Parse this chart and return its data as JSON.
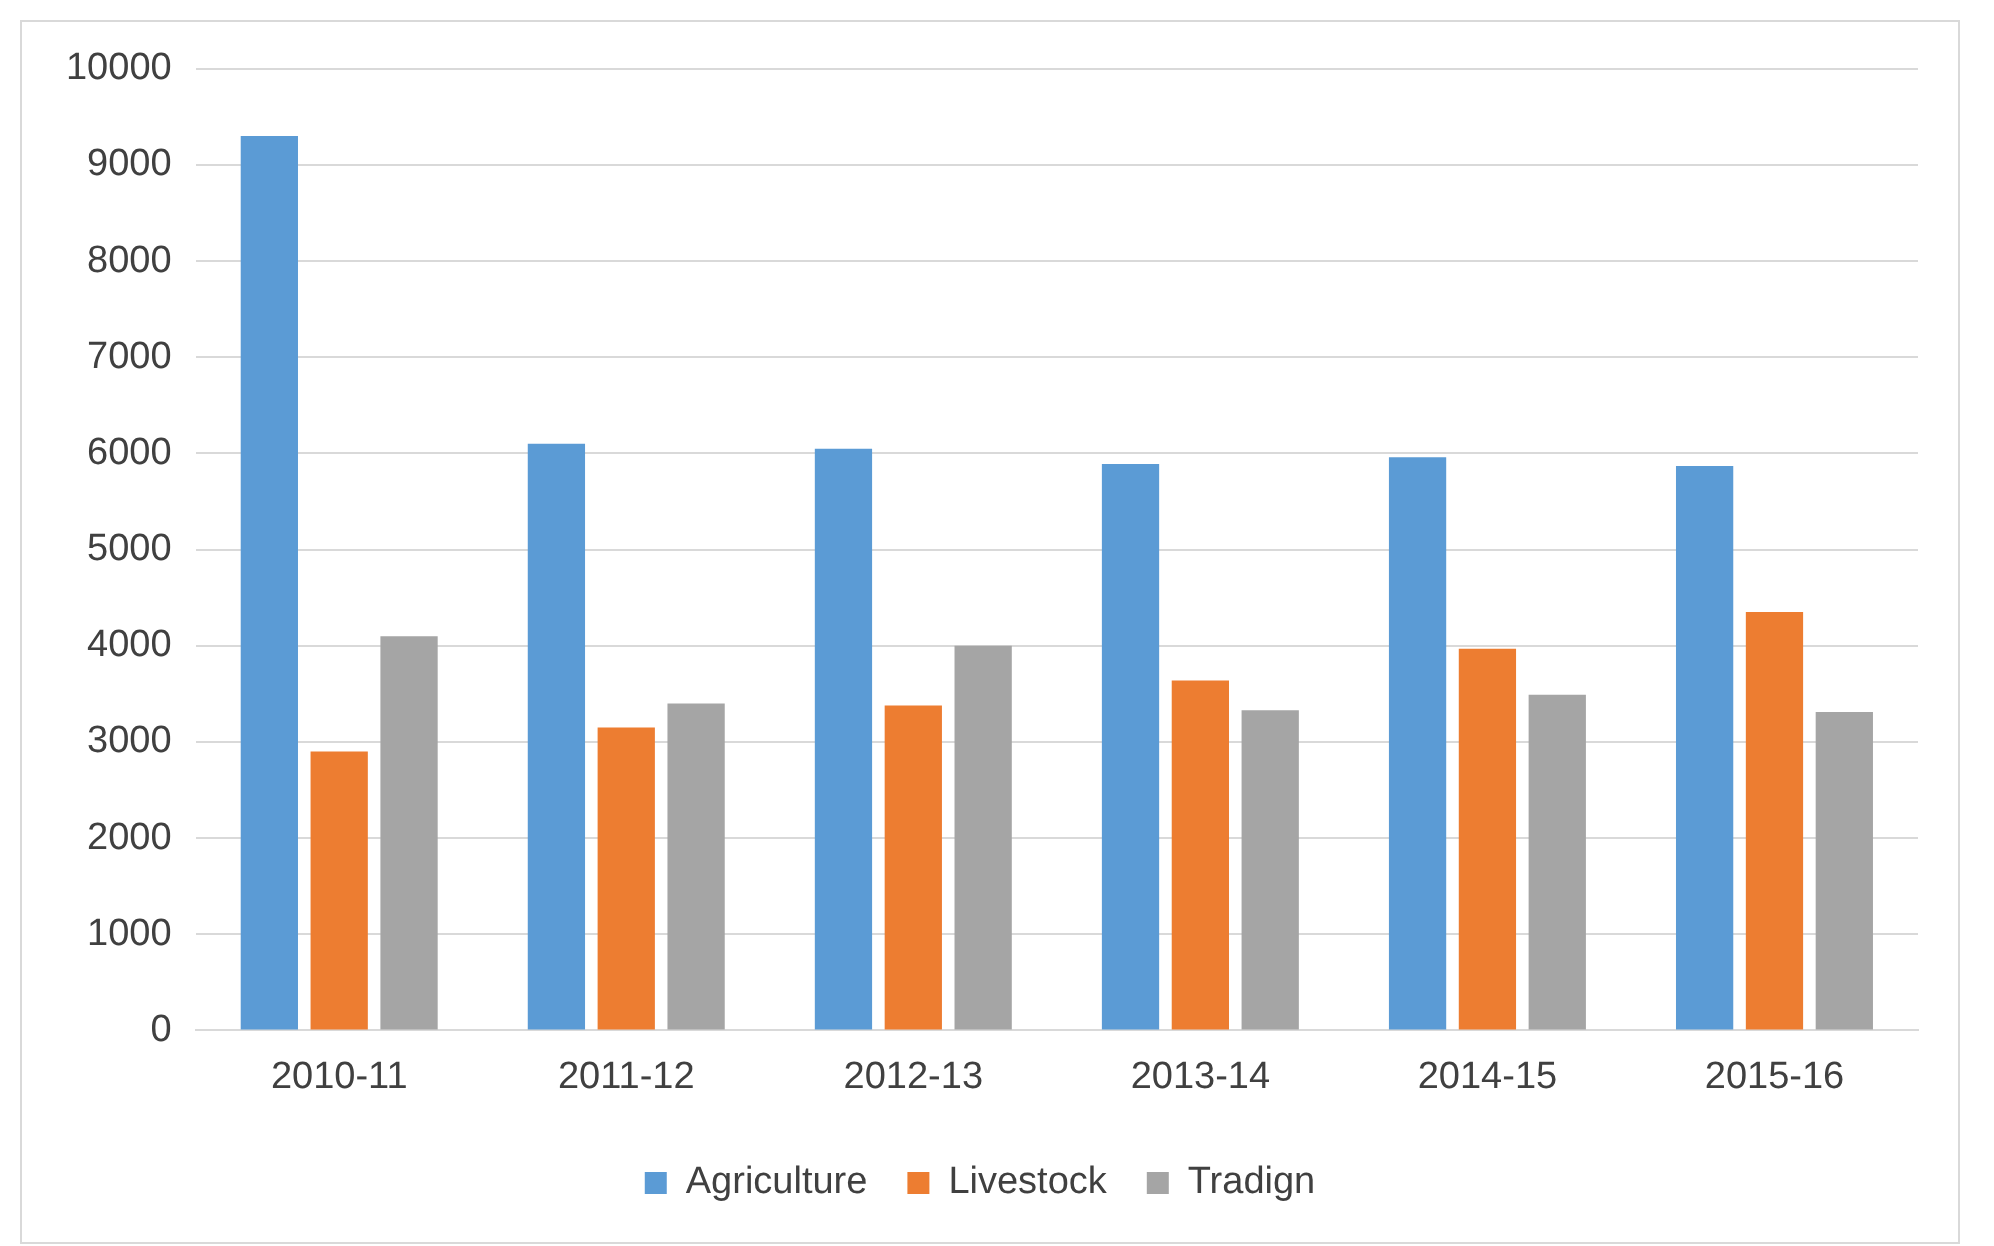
{
  "chart_data": {
    "type": "bar",
    "categories": [
      "2010-11",
      "2011-12",
      "2012-13",
      "2013-14",
      "2014-15",
      "2015-16"
    ],
    "series": [
      {
        "name": "Agriculture",
        "color": "#5b9bd5",
        "values": [
          9300,
          6100,
          6050,
          5890,
          5960,
          5870
        ]
      },
      {
        "name": "Livestock",
        "color": "#ed7d31",
        "values": [
          2900,
          3150,
          3380,
          3640,
          3970,
          4350
        ]
      },
      {
        "name": "Tradign",
        "color": "#a5a5a5",
        "values": [
          4100,
          3400,
          4000,
          3330,
          3490,
          3310
        ]
      }
    ],
    "ylim": [
      0,
      10000
    ],
    "yticks": [
      0,
      1000,
      2000,
      3000,
      4000,
      5000,
      6000,
      7000,
      8000,
      9000,
      10000
    ],
    "grid": "y",
    "legend": "bottom"
  }
}
